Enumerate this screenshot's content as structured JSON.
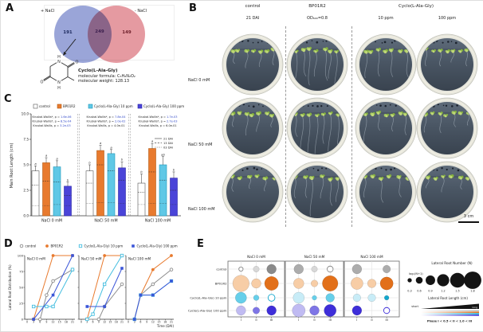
{
  "colors": {
    "bp01r2": "#E87A2E",
    "bp01r2_edge": "#B35A12",
    "cyclo10": "#5FC8E6",
    "cyclo10_edge": "#1D97BA",
    "cyclo100": "#4A44D8",
    "cyclo100_edge": "#2A23A8",
    "control_edge": "#555555",
    "control_line": "#8C8C8C",
    "d_blue": "#3A55D8",
    "d_cyan": "#45BEE0",
    "sig_blue": "#2E46C8",
    "venn_left": "#9AA5D8",
    "venn_right": "#E59AA1"
  },
  "panelA": {
    "label": "A",
    "venn": {
      "left_label": "+ NaCl",
      "right_label": "- NaCl",
      "left_count": "191",
      "overlap_count": "249",
      "right_count": "149"
    },
    "compound": {
      "name": "Cyclo(L-Ala-Gly)",
      "formula": "molecular formula: C₅H₈N₂O₂",
      "weight": "molecular weight: 128.13"
    },
    "atoms": {
      "n": "N",
      "h": "H",
      "o": "O"
    }
  },
  "panelB": {
    "label": "B",
    "groups": [
      {
        "title": "control",
        "subs": [
          "21 DAI"
        ]
      },
      {
        "title": "BP01R2",
        "subs": [
          "OD₆₀₀=0.8"
        ]
      },
      {
        "title": "Cyclo(L-Ala-Gly)",
        "subs": [
          "10 ppm",
          "100 ppm"
        ]
      }
    ],
    "row_labels": [
      "NaCl 0 mM",
      "NaCl 50 mM",
      "NaCl 100 mM"
    ],
    "scale_label": "3 cm"
  },
  "panelC": {
    "label": "C",
    "chart_data": {
      "type": "bar",
      "ylabel": "Main Root Length (cm)",
      "ylim": [
        0,
        10
      ],
      "yticks": [
        0,
        2.5,
        5,
        7.5,
        10
      ],
      "categories": [
        "NaCl 0 mM",
        "NaCl 50 mM",
        "NaCl 100 mM"
      ],
      "series": [
        {
          "name": "control",
          "day21": [
            4.4,
            4.4,
            3.2
          ],
          "day13": [
            3.0,
            3.2,
            2.3
          ],
          "day03": [
            1.0,
            1.2,
            1.1
          ],
          "err": [
            0.5,
            0.6,
            0.9
          ],
          "letters": [
            "a",
            "b",
            "b"
          ]
        },
        {
          "name": "BP01R2",
          "day21": [
            5.2,
            6.4,
            6.6
          ],
          "day13": [
            3.4,
            5.0,
            4.3
          ],
          "day03": [
            1.0,
            1.3,
            1.2
          ],
          "err": [
            0.5,
            0.5,
            0.5
          ],
          "letters": [
            "a",
            "a",
            "a"
          ]
        },
        {
          "name": "Cyclo(L-Ala-Gly) 10 ppm",
          "day21": [
            4.8,
            6.1,
            5.0
          ],
          "day13": [
            3.3,
            4.4,
            3.5
          ],
          "day03": [
            1.1,
            1.3,
            1.2
          ],
          "err": [
            0.6,
            0.4,
            0.8
          ],
          "letters": [
            "a",
            "a",
            "ab"
          ]
        },
        {
          "name": "Cyclo(L-Ala-Gly) 100 ppm",
          "day21": [
            2.9,
            4.7,
            3.7
          ],
          "day13": [
            2.0,
            3.5,
            2.5
          ],
          "day03": [
            1.0,
            1.2,
            1.1
          ],
          "err": [
            0.4,
            0.6,
            0.6
          ],
          "letters": [
            "b",
            "b",
            "b"
          ]
        }
      ],
      "stats": [
        [
          {
            "pre": "Kruskal-Wallis*, p = ",
            "val": "1.6e-06",
            "sig": true
          },
          {
            "pre": "Kruskal-Wallis*, p = ",
            "val": "8.5e-04",
            "sig": true
          },
          {
            "pre": "Kruskal-Wallis, p = ",
            "val": "3.2e-03",
            "sig": true
          }
        ],
        [
          {
            "pre": "Kruskal-Wallis*, p = ",
            "val": "7.8e-04",
            "sig": true
          },
          {
            "pre": "Kruskal-Wallis*, p = ",
            "val": "2.0e-02",
            "sig": true
          },
          {
            "pre": "Kruskal-Wallis, p = ",
            "val": "4.0e-01",
            "sig": false
          }
        ],
        [
          {
            "pre": "Kruskal-Wallis*, p = ",
            "val": "1.7e-03",
            "sig": true
          },
          {
            "pre": "Kruskal-Wallis*, p = ",
            "val": "2.7e-03",
            "sig": true
          },
          {
            "pre": "Kruskal-Wallis, p = ",
            "val": "6.0e-01",
            "sig": false
          }
        ]
      ],
      "dai_legend": [
        "21 DAI",
        "13 DAI",
        "03 DAI"
      ]
    }
  },
  "panelD": {
    "label": "D",
    "chart_data": {
      "type": "line",
      "ylabel": "Lateral Root Distribution (%)",
      "xlabel": "Time (DAI)",
      "yticks": [
        0,
        25,
        50,
        75,
        100
      ],
      "xticks": [
        0,
        3,
        6,
        9,
        12,
        15,
        18,
        21
      ],
      "subplots": [
        "NaCl 0 mM",
        "NaCl 50 mM",
        "NaCl 100 mM"
      ],
      "series": [
        {
          "name": "control",
          "marker": "circle-open",
          "color": "#8C8C8C",
          "points": [
            [
              [
                3,
                0
              ],
              [
                6,
                0
              ],
              [
                9,
                38
              ],
              [
                12,
                60
              ],
              [
                21,
                78
              ]
            ],
            [
              [
                3,
                0
              ],
              [
                9,
                0
              ],
              [
                12,
                20
              ],
              [
                21,
                55
              ]
            ],
            [
              [
                3,
                0
              ],
              [
                6,
                38
              ],
              [
                12,
                55
              ],
              [
                21,
                78
              ]
            ]
          ]
        },
        {
          "name": "BP01R2",
          "marker": "circle-filled",
          "color": "#E87A2E",
          "points": [
            [
              [
                3,
                0
              ],
              [
                12,
                100
              ],
              [
                21,
                100
              ]
            ],
            [
              [
                3,
                0
              ],
              [
                12,
                100
              ],
              [
                21,
                100
              ]
            ],
            [
              [
                3,
                0
              ],
              [
                6,
                38
              ],
              [
                12,
                78
              ],
              [
                21,
                100
              ]
            ]
          ]
        },
        {
          "name": "Cyclo(L-Ala-Gly) 10 ppm",
          "marker": "square-open",
          "color": "#45BEE0",
          "points": [
            [
              [
                3,
                20
              ],
              [
                9,
                20
              ],
              [
                12,
                20
              ],
              [
                21,
                78
              ]
            ],
            [
              [
                3,
                0
              ],
              [
                6,
                8
              ],
              [
                12,
                55
              ],
              [
                21,
                100
              ]
            ],
            [
              [
                3,
                0
              ],
              [
                6,
                38
              ],
              [
                12,
                38
              ],
              [
                21,
                60
              ]
            ]
          ]
        },
        {
          "name": "Cyclo(L-Ala-Gly) 100 ppm",
          "marker": "square-filled",
          "color": "#3A55D8",
          "points": [
            [
              [
                3,
                0
              ],
              [
                12,
                38
              ],
              [
                21,
                100
              ]
            ],
            [
              [
                3,
                20
              ],
              [
                12,
                20
              ],
              [
                21,
                80
              ]
            ],
            [
              [
                3,
                0
              ],
              [
                6,
                38
              ],
              [
                12,
                38
              ],
              [
                21,
                60
              ]
            ]
          ]
        }
      ]
    }
  },
  "panelE": {
    "label": "E",
    "chart_data": {
      "type": "bubble",
      "subplots": [
        "NaCl 0 mM",
        "NaCl 50 mM",
        "NaCl 100 mM"
      ],
      "rows": [
        "control",
        "BP01R2",
        "Cyclo(L-Ala-Gly) 10 ppm",
        "Cyclo(L-Ala-Gly) 100 ppm"
      ],
      "phases": [
        "I",
        "II",
        "III"
      ],
      "row_colors": [
        [
          "#D8D8D8",
          "#ACACAC",
          "#8A8A8A"
        ],
        [
          "#F7CDA6",
          "#F1A264",
          "#E2701A"
        ],
        [
          "#C8ECF7",
          "#66CFEA",
          "#12A7CD"
        ],
        [
          "#C0BBF2",
          "#7E75E6",
          "#3E2ED9"
        ]
      ],
      "bubbles": [
        [
          [
            {
              "s": 0.3,
              "t": 0,
              "o": true
            },
            {
              "s": 0.5,
              "t": 0
            },
            {
              "s": 0.9,
              "t": 2
            }
          ],
          [
            {
              "s": 1.7,
              "t": 0
            },
            {
              "s": 0.9,
              "t": 0
            },
            {
              "s": 1.4,
              "t": 2
            }
          ],
          [
            {
              "s": 1.1,
              "t": 1
            },
            {
              "s": 0.45,
              "t": 1
            },
            {
              "s": 0.6,
              "t": 0,
              "o": true
            }
          ],
          [
            {
              "s": 0.9,
              "t": 0
            },
            {
              "s": 0.6,
              "t": 1
            },
            {
              "s": 0.9,
              "t": 2
            }
          ]
        ],
        [
          [
            {
              "s": 0.9,
              "t": 1
            },
            {
              "s": 0.5,
              "t": 0
            },
            {
              "s": 0.5,
              "t": 1,
              "o": true
            }
          ],
          [
            {
              "s": 1.0,
              "t": 0
            },
            {
              "s": 0.6,
              "t": 0
            },
            {
              "s": 1.6,
              "t": 2
            }
          ],
          [
            {
              "s": 1.1,
              "t": 0
            },
            {
              "s": 0.35,
              "t": 1
            },
            {
              "s": 0.8,
              "t": 1
            }
          ],
          [
            {
              "s": 1.3,
              "t": 0
            },
            {
              "s": 0.9,
              "t": 1
            },
            {
              "s": 1.2,
              "t": 2
            }
          ]
        ],
        [
          [
            {
              "s": 0.9,
              "t": 1
            },
            null,
            {
              "s": 0.7,
              "t": 1
            }
          ],
          [
            {
              "s": 1.2,
              "t": 0
            },
            {
              "s": 0.8,
              "t": 0
            },
            {
              "s": 1.3,
              "t": 2
            }
          ],
          [
            {
              "s": 0.7,
              "t": 0
            },
            {
              "s": 0.7,
              "t": 0
            },
            {
              "s": 0.35,
              "t": 2
            }
          ],
          [
            {
              "s": 0.9,
              "t": 2
            },
            null,
            {
              "s": 0.5,
              "t": 1,
              "o": true
            }
          ]
        ]
      ],
      "size_legend_title": "Lateral Root Number (N)",
      "size_scale_label": "log₂(N+1)",
      "size_legend_values": [
        0.3,
        0.6,
        0.9,
        1.2,
        1.5,
        1.8
      ],
      "length_legend_title": "Lateral Root Length (cm)",
      "length_legend_min": "short",
      "length_legend_max": "long",
      "phase_note": "Phase I < 0.5 < II < 1.0 < III"
    }
  }
}
